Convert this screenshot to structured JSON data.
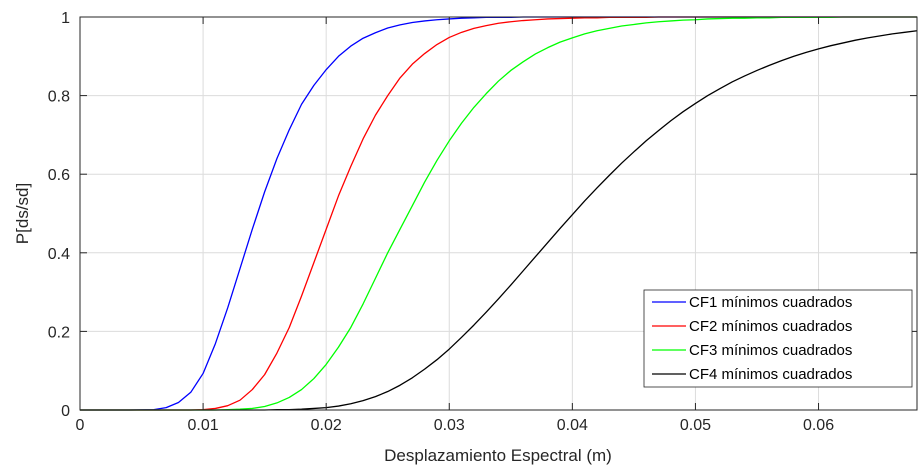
{
  "chart_data": {
    "type": "line",
    "title": "",
    "xlabel": "Desplazamiento Espectral (m)",
    "ylabel": "P[ds/sd]",
    "xlim": [
      0,
      0.068
    ],
    "ylim": [
      0,
      1
    ],
    "x_ticks": [
      "0",
      "0.01",
      "0.02",
      "0.03",
      "0.04",
      "0.05",
      "0.06"
    ],
    "y_ticks": [
      "0",
      "0.2",
      "0.4",
      "0.6",
      "0.8",
      "1"
    ],
    "grid": true,
    "legend_position": "bottom-right",
    "x": [
      0,
      0.002,
      0.004,
      0.006,
      0.007,
      0.008,
      0.009,
      0.01,
      0.011,
      0.012,
      0.013,
      0.014,
      0.015,
      0.016,
      0.017,
      0.018,
      0.019,
      0.02,
      0.021,
      0.022,
      0.023,
      0.024,
      0.025,
      0.026,
      0.027,
      0.028,
      0.029,
      0.03,
      0.031,
      0.032,
      0.033,
      0.034,
      0.035,
      0.036,
      0.037,
      0.038,
      0.039,
      0.04,
      0.041,
      0.042,
      0.043,
      0.044,
      0.045,
      0.046,
      0.047,
      0.048,
      0.049,
      0.05,
      0.051,
      0.052,
      0.053,
      0.054,
      0.055,
      0.056,
      0.057,
      0.058,
      0.059,
      0.06,
      0.061,
      0.062,
      0.063,
      0.064,
      0.065,
      0.066,
      0.067,
      0.068
    ],
    "series": [
      {
        "name": "CF1 mínimos cuadrados",
        "color": "#0000ff",
        "values": [
          0,
          0,
          0,
          0.001,
          0.006,
          0.019,
          0.045,
          0.093,
          0.169,
          0.26,
          0.36,
          0.46,
          0.555,
          0.64,
          0.713,
          0.778,
          0.826,
          0.866,
          0.9,
          0.926,
          0.946,
          0.96,
          0.972,
          0.98,
          0.986,
          0.99,
          0.993,
          0.995,
          0.997,
          0.998,
          0.999,
          0.999,
          0.999,
          1,
          1,
          1,
          1,
          1,
          1,
          1,
          1,
          1,
          1,
          1,
          1,
          1,
          1,
          1,
          1,
          1,
          1,
          1,
          1,
          1,
          1,
          1,
          1,
          1,
          1,
          1,
          1,
          1,
          1,
          1,
          1,
          1
        ]
      },
      {
        "name": "CF2 mínimos cuadrados",
        "color": "#ff0000",
        "values": [
          0,
          0,
          0,
          0,
          0,
          0,
          0,
          0.001,
          0.004,
          0.011,
          0.025,
          0.052,
          0.09,
          0.145,
          0.21,
          0.29,
          0.375,
          0.46,
          0.545,
          0.62,
          0.69,
          0.75,
          0.8,
          0.845,
          0.88,
          0.907,
          0.93,
          0.948,
          0.961,
          0.971,
          0.978,
          0.984,
          0.988,
          0.991,
          0.993,
          0.995,
          0.996,
          0.997,
          0.998,
          0.998,
          0.999,
          0.999,
          0.999,
          0.999,
          1,
          1,
          1,
          1,
          1,
          1,
          1,
          1,
          1,
          1,
          1,
          1,
          1,
          1,
          1,
          1,
          1,
          1,
          1,
          1,
          1,
          1
        ]
      },
      {
        "name": "CF3 mínimos cuadrados",
        "color": "#00ff00",
        "values": [
          0,
          0,
          0,
          0,
          0,
          0,
          0,
          0,
          0,
          0.001,
          0.002,
          0.004,
          0.009,
          0.018,
          0.032,
          0.052,
          0.08,
          0.116,
          0.16,
          0.21,
          0.27,
          0.335,
          0.4,
          0.46,
          0.52,
          0.58,
          0.635,
          0.685,
          0.73,
          0.77,
          0.805,
          0.837,
          0.864,
          0.886,
          0.906,
          0.922,
          0.936,
          0.947,
          0.957,
          0.965,
          0.971,
          0.977,
          0.981,
          0.985,
          0.988,
          0.99,
          0.992,
          0.993,
          0.995,
          0.996,
          0.997,
          0.997,
          0.998,
          0.998,
          0.999,
          0.999,
          0.999,
          0.999,
          0.999,
          1,
          1,
          1,
          1,
          1,
          1,
          1
        ]
      },
      {
        "name": "CF4 mínimos cuadrados",
        "color": "#000000",
        "values": [
          0,
          0,
          0,
          0,
          0,
          0,
          0,
          0,
          0,
          0,
          0,
          0,
          0,
          0.001,
          0.001,
          0.002,
          0.004,
          0.006,
          0.01,
          0.016,
          0.024,
          0.034,
          0.047,
          0.063,
          0.082,
          0.104,
          0.128,
          0.155,
          0.185,
          0.216,
          0.249,
          0.283,
          0.318,
          0.354,
          0.39,
          0.426,
          0.462,
          0.497,
          0.532,
          0.565,
          0.597,
          0.628,
          0.657,
          0.685,
          0.711,
          0.736,
          0.759,
          0.78,
          0.8,
          0.818,
          0.835,
          0.85,
          0.864,
          0.877,
          0.889,
          0.9,
          0.91,
          0.919,
          0.927,
          0.934,
          0.941,
          0.947,
          0.952,
          0.957,
          0.961,
          0.965
        ]
      }
    ]
  }
}
